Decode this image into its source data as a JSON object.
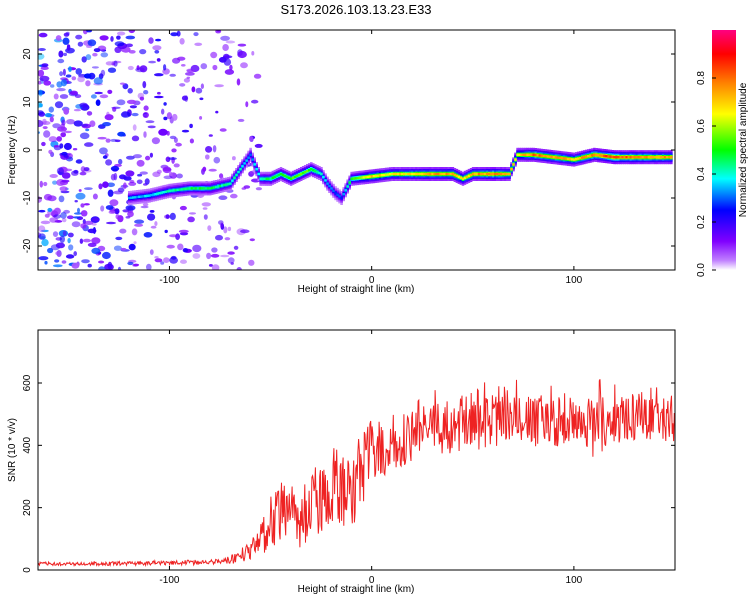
{
  "chart_data": [
    {
      "type": "heatmap",
      "title": "S173.2026.103.13.23.E33",
      "xlabel": "Height of straight line (km)",
      "ylabel": "Frequency (Hz)",
      "xlim": [
        -165,
        150
      ],
      "ylim": [
        -25,
        25
      ],
      "xticks": [
        -100,
        0,
        100
      ],
      "yticks": [
        -20,
        -10,
        0,
        10,
        20
      ],
      "colorbar": {
        "label": "Normalized spectral amplitude",
        "range": [
          0,
          1
        ],
        "ticks": [
          "0.0",
          "0.2",
          "0.4",
          "0.6",
          "0.8"
        ],
        "colors": [
          "#ffffff",
          "#8000ff",
          "#0000ff",
          "#00ffff",
          "#00ff00",
          "#ffff00",
          "#ff8000",
          "#ff0000",
          "#ff0080"
        ]
      },
      "ridge": {
        "x": [
          -120,
          -110,
          -100,
          -90,
          -80,
          -70,
          -65,
          -60,
          -55,
          -50,
          -45,
          -40,
          -35,
          -30,
          -25,
          -22,
          -18,
          -15,
          -10,
          0,
          10,
          20,
          30,
          40,
          45,
          50,
          60,
          68,
          72,
          80,
          90,
          100,
          110,
          120,
          130,
          148
        ],
        "freq": [
          -10,
          -9.5,
          -8.5,
          -8,
          -8,
          -7,
          -4,
          -1,
          -6,
          -6,
          -5,
          -6,
          -5,
          -4,
          -5,
          -7,
          -9,
          -10,
          -6,
          -5.5,
          -5,
          -5,
          -5,
          -5,
          -6,
          -5,
          -5,
          -5,
          -1,
          -1,
          -1.5,
          -2,
          -1,
          -1.5,
          -1.5,
          -1.5
        ],
        "amp": [
          0.35,
          0.4,
          0.45,
          0.5,
          0.5,
          0.45,
          0.45,
          0.35,
          0.45,
          0.5,
          0.55,
          0.55,
          0.6,
          0.55,
          0.45,
          0.35,
          0.3,
          0.3,
          0.55,
          0.75,
          0.7,
          0.75,
          0.8,
          0.8,
          0.7,
          0.8,
          0.85,
          0.75,
          0.7,
          0.85,
          0.8,
          0.75,
          0.85,
          0.9,
          0.85,
          0.8
        ]
      }
    },
    {
      "type": "line",
      "xlabel": "Height of straight line (km)",
      "ylabel": "SNR (10 * v/v)",
      "xlim": [
        -165,
        150
      ],
      "ylim": [
        0,
        770
      ],
      "xticks": [
        -100,
        0,
        100
      ],
      "yticks": [
        0,
        200,
        400,
        600
      ],
      "series": [
        {
          "name": "SNR",
          "color": "#ee2222",
          "x": [
            -165,
            -140,
            -110,
            -80,
            -70,
            -60,
            -55,
            -50,
            -45,
            -40,
            -35,
            -30,
            -25,
            -20,
            -15,
            -10,
            -5,
            0,
            10,
            20,
            30,
            40,
            50,
            60,
            70,
            80,
            90,
            100,
            105,
            110,
            115,
            120,
            130,
            140,
            150
          ],
          "mean": [
            20,
            20,
            22,
            25,
            30,
            60,
            110,
            150,
            190,
            180,
            160,
            210,
            240,
            280,
            250,
            260,
            310,
            380,
            410,
            430,
            450,
            460,
            470,
            475,
            480,
            470,
            470,
            480,
            470,
            450,
            470,
            480,
            485,
            480,
            470
          ],
          "amp": [
            8,
            8,
            10,
            12,
            20,
            50,
            90,
            120,
            130,
            130,
            140,
            160,
            170,
            180,
            190,
            200,
            170,
            150,
            130,
            120,
            120,
            120,
            120,
            130,
            130,
            120,
            110,
            110,
            110,
            200,
            120,
            110,
            100,
            100,
            100
          ]
        }
      ]
    }
  ]
}
